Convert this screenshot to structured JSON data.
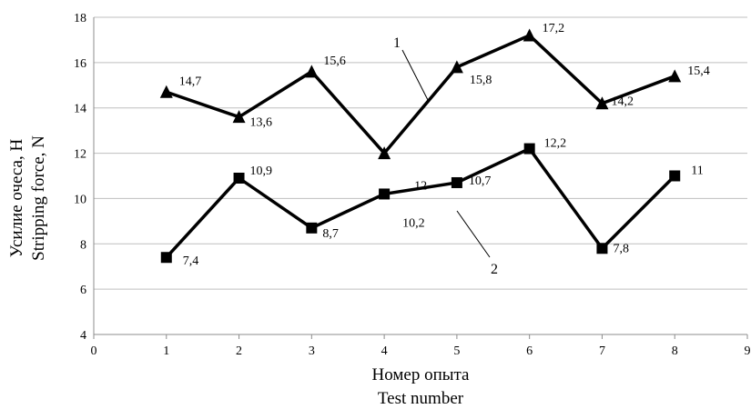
{
  "chart_data": {
    "type": "line",
    "xlabel": [
      "Номер опыта",
      "Test number"
    ],
    "ylabel": [
      "Усилие очеса, Н",
      "Stripping force, N"
    ],
    "xlim": [
      0,
      9
    ],
    "ylim": [
      4,
      18
    ],
    "x_ticks": [
      "0",
      "1",
      "2",
      "3",
      "4",
      "5",
      "6",
      "7",
      "8",
      "9"
    ],
    "y_ticks": [
      "4",
      "6",
      "8",
      "10",
      "12",
      "14",
      "16",
      "18"
    ],
    "grid": {
      "horizontal": true,
      "vertical": false
    },
    "series": [
      {
        "name": "1",
        "marker": "triangle",
        "x": [
          1,
          2,
          3,
          4,
          5,
          6,
          7,
          8
        ],
        "values": [
          14.7,
          13.6,
          15.6,
          12,
          15.8,
          17.2,
          14.2,
          15.4
        ],
        "labels": [
          "14,7",
          "13,6",
          "15,6",
          "12",
          "15,8",
          "17,2",
          "14,2",
          "15,4"
        ]
      },
      {
        "name": "2",
        "marker": "square",
        "x": [
          1,
          2,
          3,
          4,
          5,
          6,
          7,
          8
        ],
        "values": [
          7.4,
          10.9,
          8.7,
          10.2,
          10.7,
          12.2,
          7.8,
          11
        ],
        "labels": [
          "7,4",
          "10,9",
          "8,7",
          "10,2",
          "10,7",
          "12,2",
          "7,8",
          "11"
        ]
      }
    ],
    "colors": {
      "line": "#000000",
      "grid": "#bfbfbf"
    }
  }
}
